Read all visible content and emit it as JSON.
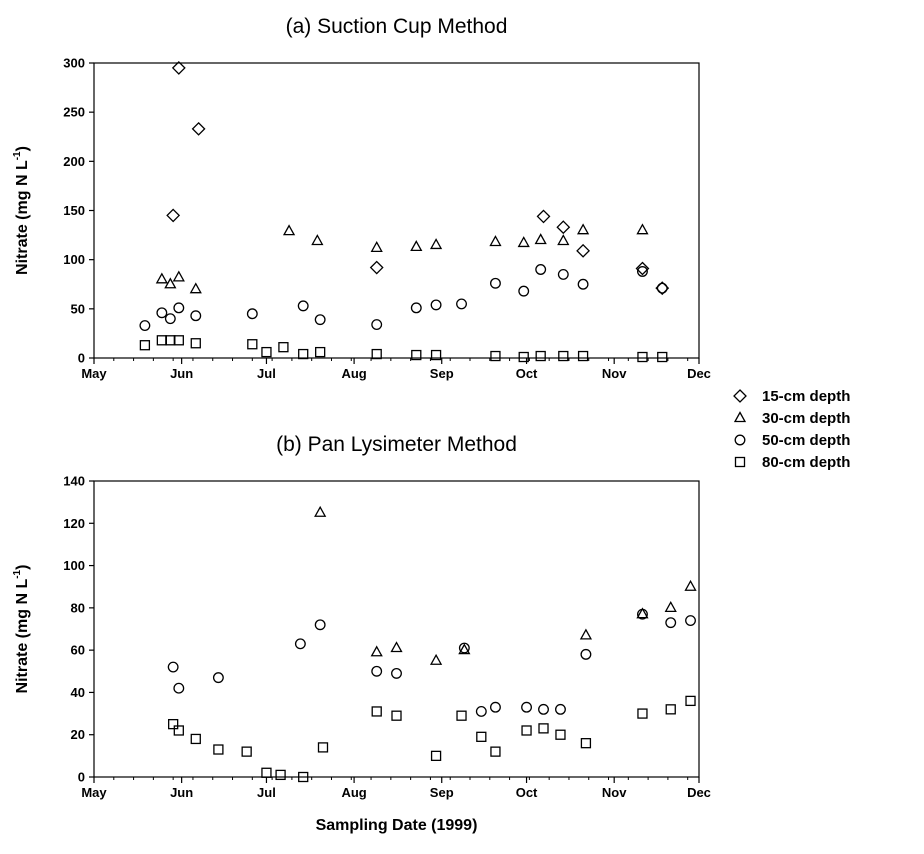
{
  "chart_data": [
    {
      "id": "panel-a",
      "type": "scatter",
      "title": "(a) Suction Cup Method",
      "ylabel": "Nitrate (mg N L",
      "ylabel_sup": "-1",
      "ylabel_close": ")",
      "xlabel": "",
      "ylim": [
        0,
        300
      ],
      "yticks": [
        0,
        50,
        100,
        150,
        200,
        250,
        300
      ],
      "xaxis": {
        "type": "date",
        "range": [
          "1999-05-01",
          "1999-12-01"
        ],
        "ticks": [
          {
            "date": "1999-05-01",
            "label": "May"
          },
          {
            "date": "1999-06-01",
            "label": "Jun"
          },
          {
            "date": "1999-07-01",
            "label": "Jul"
          },
          {
            "date": "1999-08-01",
            "label": "Aug"
          },
          {
            "date": "1999-09-01",
            "label": "Sep"
          },
          {
            "date": "1999-10-01",
            "label": "Oct"
          },
          {
            "date": "1999-11-01",
            "label": "Nov"
          },
          {
            "date": "1999-12-01",
            "label": "Dec"
          }
        ]
      },
      "series": [
        {
          "name": "15-cm depth",
          "marker": "diamond",
          "points": [
            [
              "1999-05-29",
              145
            ],
            [
              "1999-05-31",
              295
            ],
            [
              "1999-06-07",
              233
            ],
            [
              "1999-08-09",
              92
            ],
            [
              "1999-10-07",
              144
            ],
            [
              "1999-10-14",
              133
            ],
            [
              "1999-10-21",
              109
            ],
            [
              "1999-11-11",
              91
            ],
            [
              "1999-11-18",
              71
            ]
          ]
        },
        {
          "name": "30-cm depth",
          "marker": "triangle",
          "points": [
            [
              "1999-05-25",
              80
            ],
            [
              "1999-05-28",
              75
            ],
            [
              "1999-05-31",
              82
            ],
            [
              "1999-06-06",
              70
            ],
            [
              "1999-07-09",
              129
            ],
            [
              "1999-07-19",
              119
            ],
            [
              "1999-08-09",
              112
            ],
            [
              "1999-08-23",
              113
            ],
            [
              "1999-08-30",
              115
            ],
            [
              "1999-09-20",
              118
            ],
            [
              "1999-09-30",
              117
            ],
            [
              "1999-10-06",
              120
            ],
            [
              "1999-10-14",
              119
            ],
            [
              "1999-10-21",
              130
            ],
            [
              "1999-11-11",
              130
            ]
          ]
        },
        {
          "name": "50-cm depth",
          "marker": "circle",
          "points": [
            [
              "1999-05-19",
              33
            ],
            [
              "1999-05-25",
              46
            ],
            [
              "1999-05-28",
              40
            ],
            [
              "1999-05-31",
              51
            ],
            [
              "1999-06-06",
              43
            ],
            [
              "1999-06-26",
              45
            ],
            [
              "1999-07-14",
              53
            ],
            [
              "1999-07-20",
              39
            ],
            [
              "1999-08-09",
              34
            ],
            [
              "1999-08-23",
              51
            ],
            [
              "1999-08-30",
              54
            ],
            [
              "1999-09-08",
              55
            ],
            [
              "1999-09-20",
              76
            ],
            [
              "1999-09-30",
              68
            ],
            [
              "1999-10-06",
              90
            ],
            [
              "1999-10-14",
              85
            ],
            [
              "1999-10-21",
              75
            ],
            [
              "1999-11-11",
              88
            ],
            [
              "1999-11-18",
              71
            ]
          ]
        },
        {
          "name": "80-cm depth",
          "marker": "square",
          "points": [
            [
              "1999-05-19",
              13
            ],
            [
              "1999-05-25",
              18
            ],
            [
              "1999-05-28",
              18
            ],
            [
              "1999-05-31",
              18
            ],
            [
              "1999-06-06",
              15
            ],
            [
              "1999-06-26",
              14
            ],
            [
              "1999-07-01",
              6
            ],
            [
              "1999-07-07",
              11
            ],
            [
              "1999-07-14",
              4
            ],
            [
              "1999-07-20",
              6
            ],
            [
              "1999-08-09",
              4
            ],
            [
              "1999-08-23",
              3
            ],
            [
              "1999-08-30",
              3
            ],
            [
              "1999-09-20",
              2
            ],
            [
              "1999-09-30",
              1
            ],
            [
              "1999-10-06",
              2
            ],
            [
              "1999-10-14",
              2
            ],
            [
              "1999-10-21",
              2
            ],
            [
              "1999-11-11",
              1
            ],
            [
              "1999-11-18",
              1
            ]
          ]
        }
      ]
    },
    {
      "id": "panel-b",
      "type": "scatter",
      "title": "(b) Pan Lysimeter Method",
      "ylabel": "Nitrate (mg N L",
      "ylabel_sup": "-1",
      "ylabel_close": ")",
      "xlabel": "Sampling Date (1999)",
      "ylim": [
        0,
        140
      ],
      "yticks": [
        0,
        20,
        40,
        60,
        80,
        100,
        120,
        140
      ],
      "xaxis": {
        "type": "date",
        "range": [
          "1999-05-01",
          "1999-12-01"
        ],
        "ticks": [
          {
            "date": "1999-05-01",
            "label": "May"
          },
          {
            "date": "1999-06-01",
            "label": "Jun"
          },
          {
            "date": "1999-07-01",
            "label": "Jul"
          },
          {
            "date": "1999-08-01",
            "label": "Aug"
          },
          {
            "date": "1999-09-01",
            "label": "Sep"
          },
          {
            "date": "1999-10-01",
            "label": "Oct"
          },
          {
            "date": "1999-11-01",
            "label": "Nov"
          },
          {
            "date": "1999-12-01",
            "label": "Dec"
          }
        ]
      },
      "series": [
        {
          "name": "30-cm depth",
          "marker": "triangle",
          "points": [
            [
              "1999-07-20",
              125
            ],
            [
              "1999-08-09",
              59
            ],
            [
              "1999-08-16",
              61
            ],
            [
              "1999-08-30",
              55
            ],
            [
              "1999-09-09",
              60
            ],
            [
              "1999-10-22",
              67
            ],
            [
              "1999-11-11",
              77
            ],
            [
              "1999-11-21",
              80
            ],
            [
              "1999-11-28",
              90
            ]
          ]
        },
        {
          "name": "50-cm depth",
          "marker": "circle",
          "points": [
            [
              "1999-05-29",
              52
            ],
            [
              "1999-05-31",
              42
            ],
            [
              "1999-06-14",
              47
            ],
            [
              "1999-07-13",
              63
            ],
            [
              "1999-07-20",
              72
            ],
            [
              "1999-08-09",
              50
            ],
            [
              "1999-08-16",
              49
            ],
            [
              "1999-09-09",
              61
            ],
            [
              "1999-09-15",
              31
            ],
            [
              "1999-09-20",
              33
            ],
            [
              "1999-10-01",
              33
            ],
            [
              "1999-10-07",
              32
            ],
            [
              "1999-10-13",
              32
            ],
            [
              "1999-10-22",
              58
            ],
            [
              "1999-11-11",
              77
            ],
            [
              "1999-11-21",
              73
            ],
            [
              "1999-11-28",
              74
            ]
          ]
        },
        {
          "name": "80-cm depth",
          "marker": "square",
          "points": [
            [
              "1999-05-29",
              25
            ],
            [
              "1999-05-31",
              22
            ],
            [
              "1999-06-06",
              18
            ],
            [
              "1999-06-14",
              13
            ],
            [
              "1999-06-24",
              12
            ],
            [
              "1999-07-01",
              2
            ],
            [
              "1999-07-06",
              1
            ],
            [
              "1999-07-14",
              0
            ],
            [
              "1999-07-21",
              14
            ],
            [
              "1999-08-09",
              31
            ],
            [
              "1999-08-16",
              29
            ],
            [
              "1999-08-30",
              10
            ],
            [
              "1999-09-08",
              29
            ],
            [
              "1999-09-15",
              19
            ],
            [
              "1999-09-20",
              12
            ],
            [
              "1999-10-01",
              22
            ],
            [
              "1999-10-07",
              23
            ],
            [
              "1999-10-13",
              20
            ],
            [
              "1999-10-22",
              16
            ],
            [
              "1999-11-11",
              30
            ],
            [
              "1999-11-21",
              32
            ],
            [
              "1999-11-28",
              36
            ]
          ]
        }
      ]
    }
  ],
  "legend": {
    "placement": "right",
    "items": [
      {
        "label": "15-cm depth",
        "marker": "diamond"
      },
      {
        "label": "30-cm depth",
        "marker": "triangle"
      },
      {
        "label": "50-cm depth",
        "marker": "circle"
      },
      {
        "label": "80-cm depth",
        "marker": "square"
      }
    ]
  },
  "colors": {
    "marker_stroke": "#000000",
    "axis": "#000000",
    "background": "#ffffff"
  }
}
